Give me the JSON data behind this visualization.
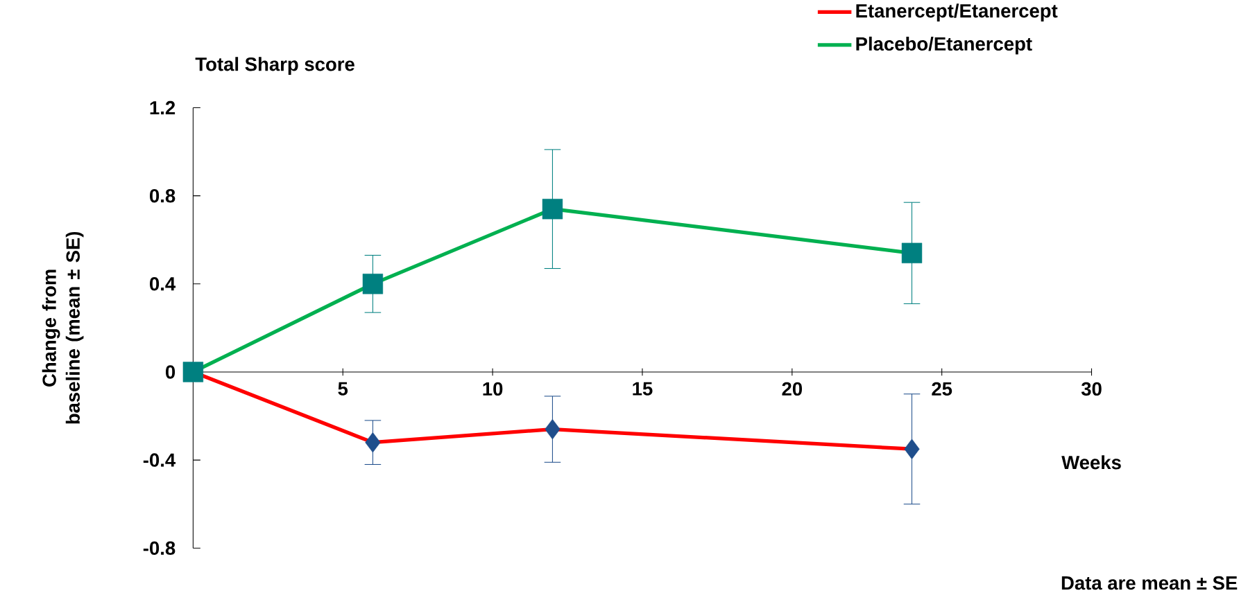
{
  "chart_data": {
    "type": "line",
    "title": "Total Sharp score",
    "xlabel": "Weeks",
    "ylabel": "Change from baseline (mean ± SE)",
    "annotations": [
      "Data are mean ± SE"
    ],
    "x": [
      0,
      6,
      12,
      24
    ],
    "series": [
      {
        "name": "Etanercept/Etanercept",
        "color": "#ff0000",
        "colors": [
          "#1f4e8c",
          "#1f4e8c",
          "#1f4e8c",
          "#1f4e8c"
        ],
        "marker": "diamond",
        "values": [
          0,
          -0.32,
          -0.26,
          -0.35
        ],
        "errors": [
          null,
          0.1,
          0.15,
          0.25
        ]
      },
      {
        "name": "Placebo/Etanercept",
        "color": "#00b050",
        "colors": [
          "#008080",
          "#008080",
          "#008080",
          "#008080"
        ],
        "marker": "square",
        "values": [
          0,
          0.4,
          0.74,
          0.54
        ],
        "errors": [
          null,
          0.13,
          0.27,
          0.23
        ]
      }
    ],
    "xlim": [
      0,
      30
    ],
    "xticks": [
      5,
      10,
      15,
      20,
      25,
      30
    ],
    "ylim": [
      -0.8,
      1.2
    ],
    "yticks": [
      -0.8,
      -0.4,
      0,
      0.4,
      0.8,
      1.2
    ],
    "legend": "top right",
    "grid": false
  }
}
